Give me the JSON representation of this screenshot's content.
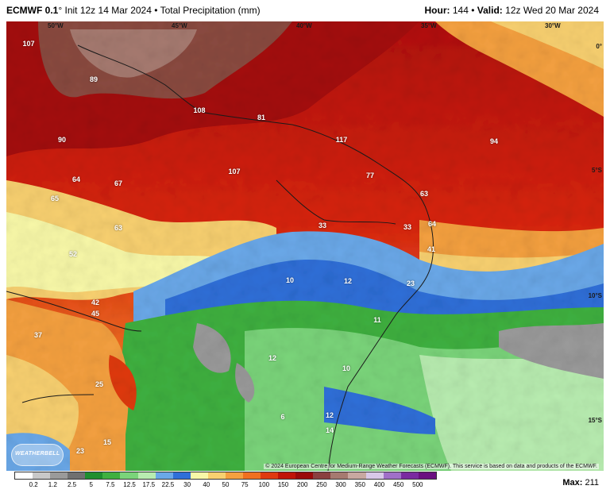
{
  "header": {
    "model": "ECMWF 0.1",
    "degree": "°",
    "init": " Init 12z 14 Mar 2024",
    "bullet": "•",
    "product": "Total Precipitation (mm)",
    "hour_label": "Hour:",
    "hour_value": "144",
    "valid_label": "Valid:",
    "valid_value": "12z Wed 20 Mar 2024"
  },
  "map": {
    "longitude_labels": [
      "50°W",
      "45°W",
      "40°W",
      "35°W",
      "30°W"
    ],
    "latitude_labels": [
      "0°",
      "5°S",
      "10°S",
      "15°S"
    ],
    "values": [
      "107",
      "89",
      "108",
      "81",
      "117",
      "94",
      "90",
      "64",
      "67",
      "107",
      "77",
      "63",
      "65",
      "63",
      "33",
      "33",
      "64",
      "41",
      "52",
      "10",
      "12",
      "23",
      "42",
      "45",
      "11",
      "37",
      "12",
      "10",
      "25",
      "6",
      "12",
      "14",
      "15",
      "23"
    ],
    "copyright": "© 2024 European Centre for Medium-Range Weather Forecasts (ECMWF). This service is based on data and products of the ECMWF.",
    "logo_text": "WEATHERBELL"
  },
  "legend": {
    "ticks": [
      "0.2",
      "1.2",
      "2.5",
      "5",
      "7.5",
      "12.5",
      "17.5",
      "22.5",
      "30",
      "40",
      "50",
      "75",
      "100",
      "150",
      "200",
      "250",
      "300",
      "350",
      "400",
      "450",
      "500"
    ],
    "colors": [
      "#ffffff",
      "#c8c8c8",
      "#9a9a9a",
      "#707070",
      "#1f8f2f",
      "#3fb040",
      "#7ad47a",
      "#b8ecb0",
      "#6aa8e8",
      "#2f6fd8",
      "#f8f8a8",
      "#f8d070",
      "#f4a040",
      "#f07020",
      "#e03a10",
      "#c01408",
      "#9a0a0a",
      "#8a4040",
      "#a67a70",
      "#c8a8a0",
      "#d8c8e8",
      "#a070c8",
      "#7a2aa0",
      "#6a1080"
    ],
    "max_label": "Max:",
    "max_value": "211"
  }
}
